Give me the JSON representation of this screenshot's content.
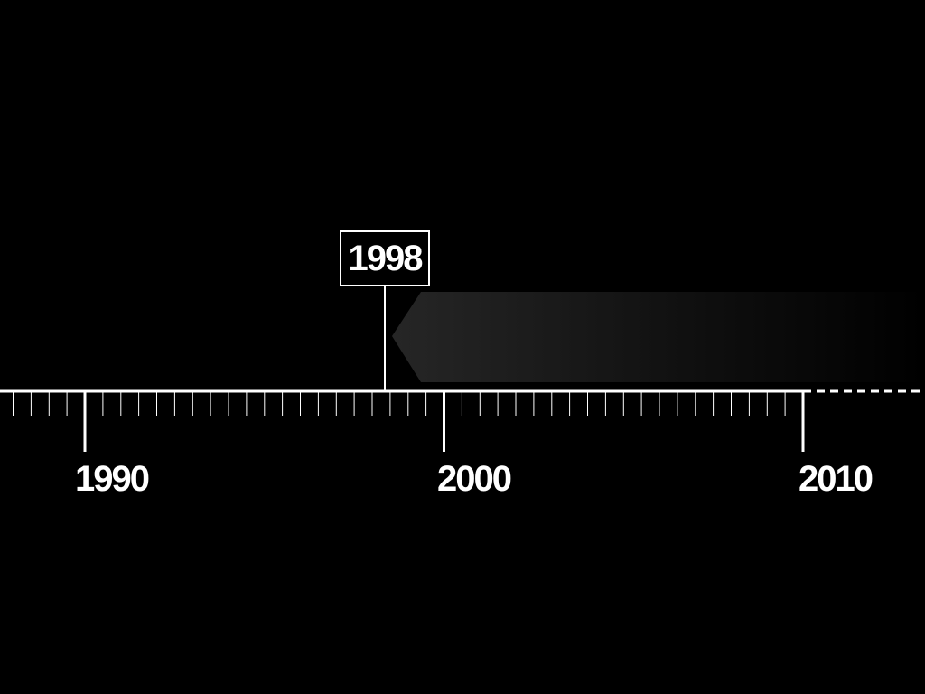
{
  "timeline": {
    "start_year": 1988,
    "end_year": 2010,
    "major_labels": [
      "1990",
      "2000",
      "2010"
    ],
    "marker": {
      "label": "1998",
      "year": 1998
    },
    "extends_beyond_end": true,
    "colors": {
      "background": "#000000",
      "line": "#ffffff",
      "text": "#ffffff",
      "arrow_gradient_start": "#262626",
      "arrow_gradient_end": "#000000"
    }
  }
}
